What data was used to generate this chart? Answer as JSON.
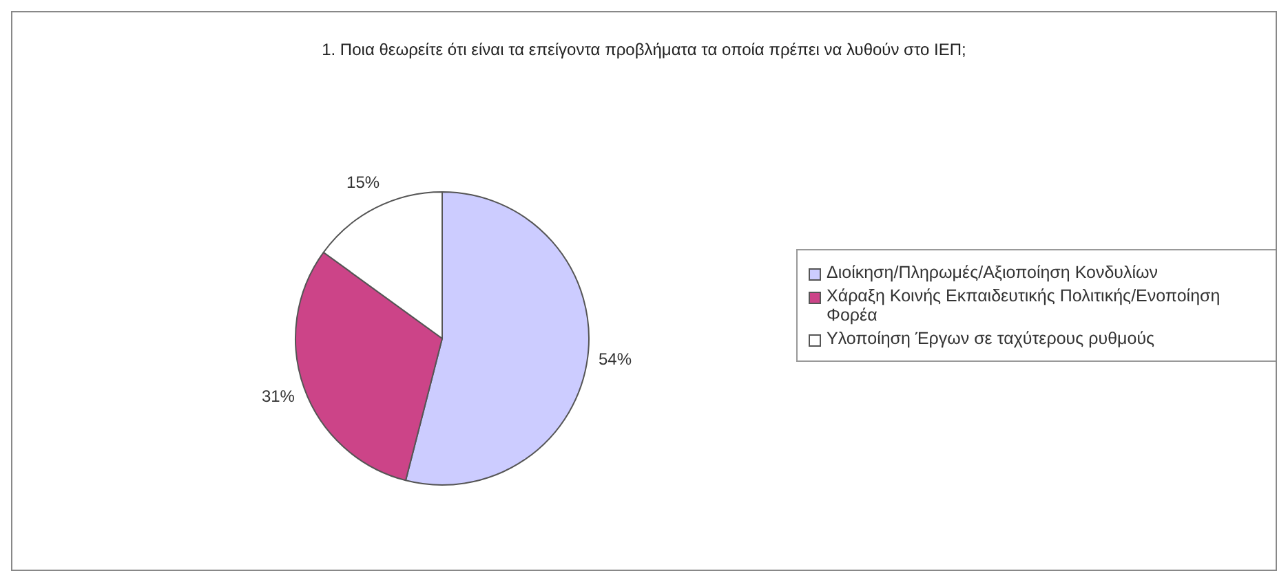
{
  "chart_data": {
    "type": "pie",
    "title": "1. Ποια θεωρείτε ότι είναι τα επείγοντα προβλήματα τα οποία πρέπει να λυθούν στο ΙΕΠ;",
    "categories": [
      "Διοίκηση/Πληρωμές/Αξιοποίηση Κονδυλίων",
      "Χάραξη Κοινής Εκπαιδευτικής Πολιτικής/Ενοποίηση Φορέα",
      "Υλοποίηση Έργων σε ταχύτερους ρυθμούς"
    ],
    "values": [
      54,
      31,
      15
    ],
    "colors": [
      "#ccccff",
      "#cc4488",
      "#ffffff"
    ],
    "value_labels": [
      "54%",
      "31%",
      "15%"
    ],
    "legend": "right"
  }
}
